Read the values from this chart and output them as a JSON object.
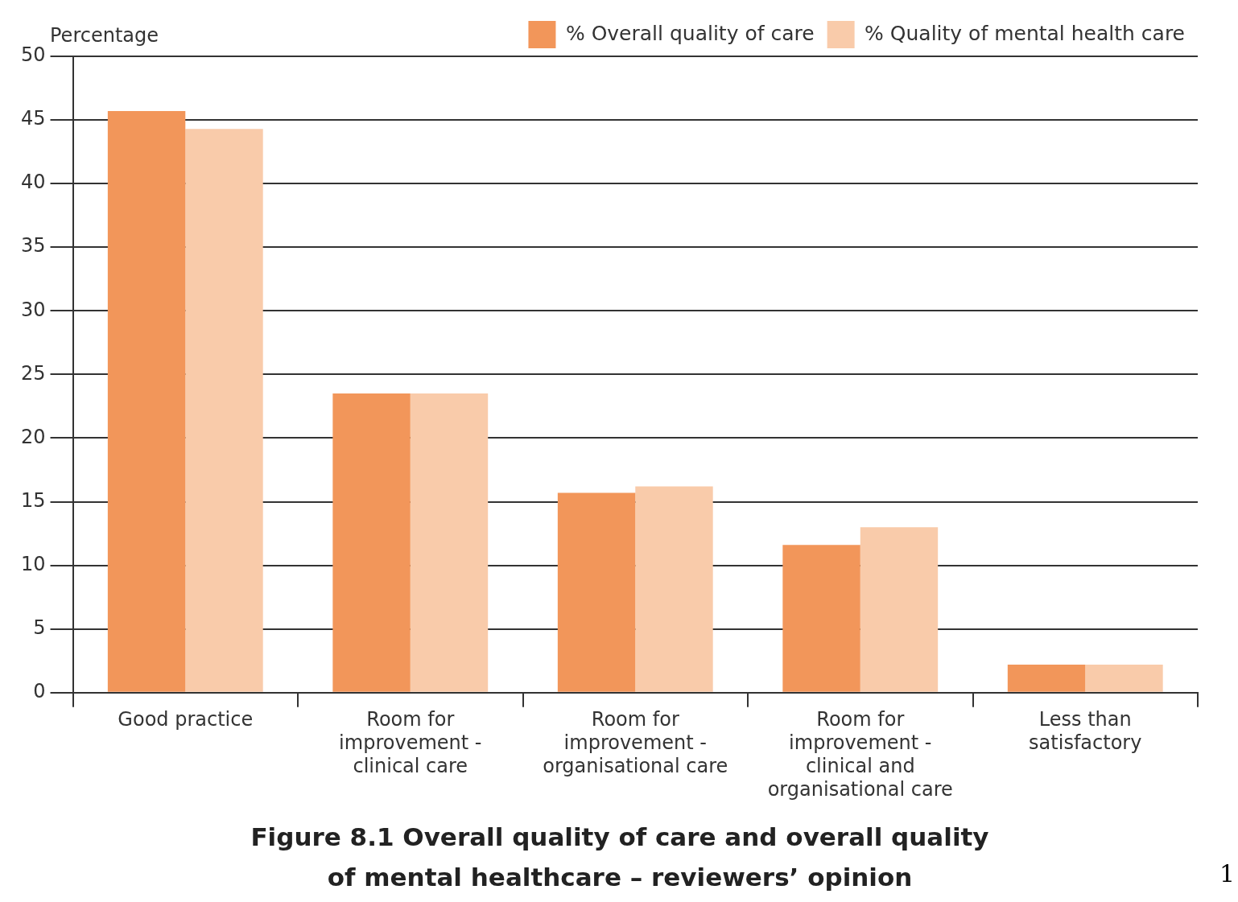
{
  "chart_data": {
    "type": "bar",
    "title": "Figure 8.1 Overall quality of care and overall quality of mental healthcare – reviewers’ opinion",
    "ylabel": "Percentage",
    "categories": [
      "Good practice",
      "Room for improvement - clinical care",
      "Room for improvement - organisational care",
      "Room for improvement - clinical and organisational care",
      "Less than satisfactory"
    ],
    "series": [
      {
        "name": "% Overall quality of care",
        "color": "#f2965a",
        "values": [
          45.7,
          23.5,
          15.7,
          11.6,
          2.2
        ]
      },
      {
        "name": "% Quality of mental health care",
        "color": "#f9cbaa",
        "values": [
          44.3,
          23.5,
          16.2,
          13.0,
          2.2
        ]
      }
    ],
    "ylim": [
      0,
      50
    ],
    "yticks": [
      0,
      5,
      10,
      15,
      20,
      25,
      30,
      35,
      40,
      45,
      50
    ],
    "grid": "y",
    "legend": "top right",
    "annotations": [
      "1"
    ]
  }
}
